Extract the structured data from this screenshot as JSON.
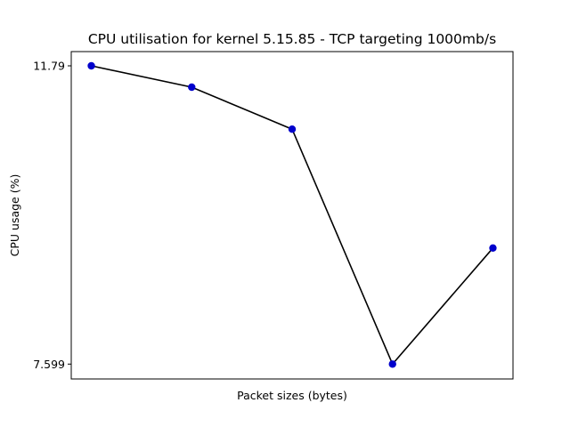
{
  "chart_data": {
    "type": "line",
    "title": "CPU utilisation for kernel 5.15.85 - TCP targeting 1000mb/s",
    "xlabel": "Packet sizes (bytes)",
    "ylabel": "CPU usage (%)",
    "x": [
      1,
      2,
      3,
      4,
      5
    ],
    "xticks_shown": false,
    "yticks": [
      7.599,
      11.79
    ],
    "ytick_labels": [
      "7.599",
      "11.79"
    ],
    "ylim": [
      7.39,
      11.99
    ],
    "grid": false,
    "series": [
      {
        "values": [
          11.79,
          11.49,
          10.9,
          7.599,
          9.23
        ],
        "line_color": "#000000",
        "marker_color": "#0000cc",
        "marker": "circle"
      }
    ]
  }
}
